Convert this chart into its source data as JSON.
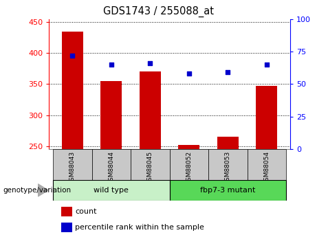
{
  "title": "GDS1743 / 255088_at",
  "categories": [
    "GSM88043",
    "GSM88044",
    "GSM88045",
    "GSM88052",
    "GSM88053",
    "GSM88054"
  ],
  "bar_values": [
    435,
    355,
    370,
    252,
    265,
    347
  ],
  "percentile_values": [
    72,
    65,
    66,
    58,
    59,
    65
  ],
  "bar_color": "#cc0000",
  "dot_color": "#0000cc",
  "ylim_left": [
    245,
    455
  ],
  "ylim_right": [
    0,
    100
  ],
  "yticks_left": [
    250,
    300,
    350,
    400,
    450
  ],
  "yticks_right": [
    0,
    25,
    50,
    75,
    100
  ],
  "group1_label": "wild type",
  "group2_label": "fbp7-3 mutant",
  "group1_color": "#c8f0c8",
  "group2_color": "#58d858",
  "xlabel_area_color": "#c8c8c8",
  "legend_count_label": "count",
  "legend_percentile_label": "percentile rank within the sample",
  "genotype_label": "genotype/variation",
  "bar_width": 0.55
}
